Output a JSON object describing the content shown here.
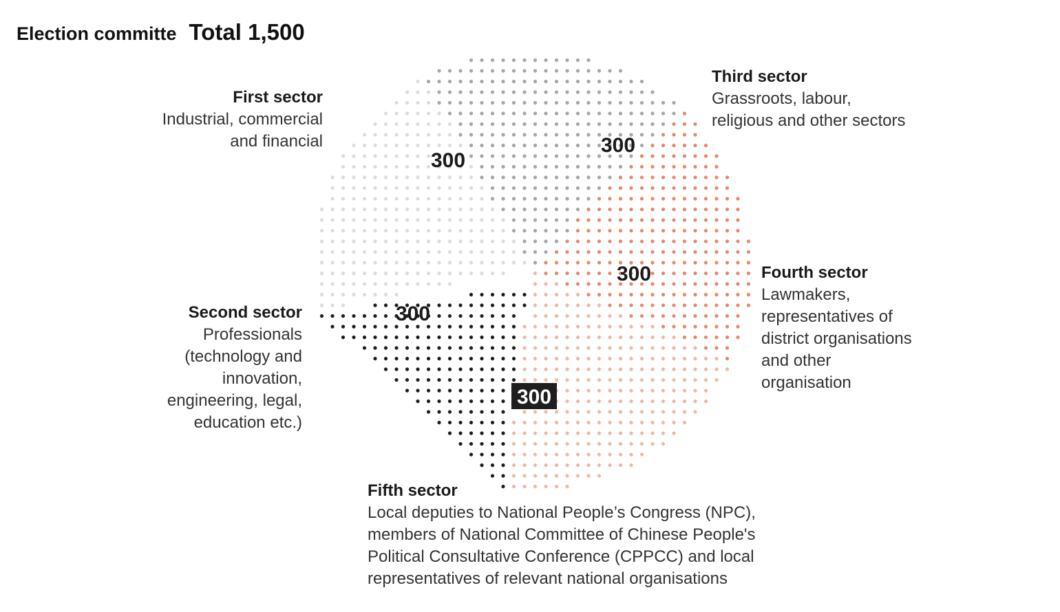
{
  "title": "Election committe",
  "total_label": "Total 1,500",
  "chart_data": {
    "type": "pie",
    "title": "Election committe",
    "subtitle": "Total 1,500",
    "total": 1500,
    "slices": [
      {
        "name": "First sector",
        "description": [
          "Industrial, commercial",
          "and financial"
        ],
        "value": 300,
        "color": "#a6a6a6"
      },
      {
        "name": "Third sector",
        "description": [
          "Grassroots, labour,",
          "religious and other sectors"
        ],
        "value": 300,
        "color": "#ef8466"
      },
      {
        "name": "Fourth sector",
        "description": [
          "Lawmakers,",
          "representatives of",
          "district organisations",
          "and other",
          "organisation"
        ],
        "value": 300,
        "color": "#f5b5a5"
      },
      {
        "name": "Fifth sector",
        "description": [
          "Local deputies to National People’s Congress (NPC),",
          "members of National Committee of Chinese People's",
          "Political Consultative Conference (CPPCC) and local",
          "representatives of relevant national organisations"
        ],
        "value": 300,
        "color": "#1e1e1e"
      },
      {
        "name": "Second sector",
        "description": [
          "Professionals",
          "(technology and",
          "innovation,",
          "engineering, legal,",
          "education etc.)"
        ],
        "value": 300,
        "color": "#dcdcdc"
      }
    ]
  }
}
